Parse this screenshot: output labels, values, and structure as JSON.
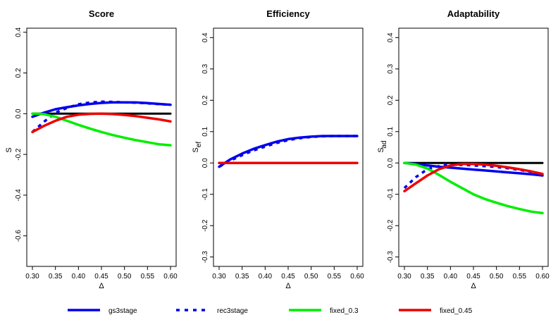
{
  "chart_data": [
    {
      "type": "line",
      "title": "Score",
      "xlabel": "Δ",
      "ylabel": "S",
      "ylabel_sub": "",
      "xlim": [
        0.3,
        0.6
      ],
      "ylim": [
        -0.75,
        0.42
      ],
      "xticks": [
        "0.30",
        "0.35",
        "0.40",
        "0.45",
        "0.50",
        "0.55",
        "0.60"
      ],
      "yticks": [
        -0.6,
        -0.4,
        -0.2,
        0.0,
        0.2,
        0.4
      ],
      "yticklabels": [
        "-0.6",
        "-0.4",
        "-0.2",
        "0.0",
        "0.2",
        "0.4"
      ],
      "x": [
        0.3,
        0.325,
        0.35,
        0.375,
        0.4,
        0.425,
        0.45,
        0.475,
        0.5,
        0.525,
        0.55,
        0.575,
        0.6
      ],
      "series": [
        {
          "key": "ref",
          "color": "#000000",
          "dash": false,
          "values": [
            0,
            0,
            0,
            0,
            0,
            0,
            0,
            0,
            0,
            0,
            0,
            0,
            0
          ]
        },
        {
          "key": "gs3stage",
          "color": "#0000ee",
          "dash": false,
          "values": [
            -0.015,
            0.005,
            0.022,
            0.032,
            0.041,
            0.048,
            0.053,
            0.056,
            0.056,
            0.055,
            0.052,
            0.048,
            0.044
          ]
        },
        {
          "key": "rec3stage",
          "color": "#0000ee",
          "dash": true,
          "values": [
            -0.09,
            -0.04,
            0.005,
            0.028,
            0.046,
            0.055,
            0.059,
            0.058,
            0.056,
            0.054,
            0.051,
            0.047,
            0.044
          ]
        },
        {
          "key": "fixed_0.3",
          "color": "#00ee00",
          "dash": false,
          "values": [
            0.0,
            -0.002,
            -0.015,
            -0.035,
            -0.055,
            -0.073,
            -0.09,
            -0.105,
            -0.118,
            -0.13,
            -0.14,
            -0.15,
            -0.155
          ]
        },
        {
          "key": "fixed_0.45",
          "color": "#ee0000",
          "dash": false,
          "values": [
            -0.09,
            -0.06,
            -0.035,
            -0.015,
            -0.005,
            -0.001,
            0.0,
            -0.002,
            -0.006,
            -0.012,
            -0.02,
            -0.028,
            -0.038
          ]
        }
      ]
    },
    {
      "type": "line",
      "title": "Efficiency",
      "xlabel": "Δ",
      "ylabel": "S",
      "ylabel_sub": "ef",
      "xlim": [
        0.3,
        0.6
      ],
      "ylim": [
        -0.33,
        0.43
      ],
      "xticks": [
        "0.30",
        "0.35",
        "0.40",
        "0.45",
        "0.50",
        "0.55",
        "0.60"
      ],
      "yticks": [
        -0.3,
        -0.2,
        -0.1,
        0.0,
        0.1,
        0.2,
        0.3,
        0.4
      ],
      "yticklabels": [
        "-0.3",
        "-0.2",
        "-0.1",
        "0.0",
        "0.1",
        "0.2",
        "0.3",
        "0.4"
      ],
      "x": [
        0.3,
        0.325,
        0.35,
        0.375,
        0.4,
        0.425,
        0.45,
        0.475,
        0.5,
        0.525,
        0.55,
        0.575,
        0.6
      ],
      "series": [
        {
          "key": "gs3stage",
          "color": "#0000ee",
          "dash": false,
          "values": [
            -0.012,
            0.012,
            0.03,
            0.045,
            0.057,
            0.068,
            0.076,
            0.081,
            0.084,
            0.086,
            0.086,
            0.086,
            0.086
          ]
        },
        {
          "key": "rec3stage",
          "color": "#0000ee",
          "dash": true,
          "values": [
            -0.012,
            0.008,
            0.025,
            0.04,
            0.052,
            0.064,
            0.073,
            0.079,
            0.083,
            0.085,
            0.086,
            0.086,
            0.086
          ]
        },
        {
          "key": "fixed_0.45",
          "color": "#ee0000",
          "dash": false,
          "values": [
            0,
            0,
            0,
            0,
            0,
            0,
            0,
            0,
            0,
            0,
            0,
            0,
            0
          ]
        }
      ]
    },
    {
      "type": "line",
      "title": "Adaptability",
      "xlabel": "Δ",
      "ylabel": "S",
      "ylabel_sub": "ad",
      "xlim": [
        0.3,
        0.6
      ],
      "ylim": [
        -0.33,
        0.43
      ],
      "xticks": [
        "0.30",
        "0.35",
        "0.40",
        "0.45",
        "0.50",
        "0.55",
        "0.60"
      ],
      "yticks": [
        -0.3,
        -0.2,
        -0.1,
        0.0,
        0.1,
        0.2,
        0.3,
        0.4
      ],
      "yticklabels": [
        "-0.3",
        "-0.2",
        "-0.1",
        "0.0",
        "0.1",
        "0.2",
        "0.3",
        "0.4"
      ],
      "x": [
        0.3,
        0.325,
        0.35,
        0.375,
        0.4,
        0.425,
        0.45,
        0.475,
        0.5,
        0.525,
        0.55,
        0.575,
        0.6
      ],
      "series": [
        {
          "key": "ref",
          "color": "#000000",
          "dash": false,
          "values": [
            0,
            0,
            0,
            0,
            0,
            0,
            0,
            0,
            0,
            0,
            0,
            0,
            0
          ]
        },
        {
          "key": "gs3stage",
          "color": "#0000ee",
          "dash": false,
          "values": [
            0.0,
            -0.003,
            -0.008,
            -0.012,
            -0.015,
            -0.018,
            -0.021,
            -0.024,
            -0.027,
            -0.03,
            -0.033,
            -0.036,
            -0.04
          ]
        },
        {
          "key": "rec3stage",
          "color": "#0000ee",
          "dash": true,
          "values": [
            -0.08,
            -0.045,
            -0.02,
            -0.01,
            -0.006,
            -0.006,
            -0.008,
            -0.01,
            -0.013,
            -0.017,
            -0.022,
            -0.028,
            -0.035
          ]
        },
        {
          "key": "fixed_0.3",
          "color": "#00ee00",
          "dash": false,
          "values": [
            0.0,
            -0.005,
            -0.018,
            -0.038,
            -0.06,
            -0.08,
            -0.1,
            -0.115,
            -0.127,
            -0.138,
            -0.147,
            -0.155,
            -0.16
          ]
        },
        {
          "key": "fixed_0.45",
          "color": "#ee0000",
          "dash": false,
          "values": [
            -0.09,
            -0.065,
            -0.04,
            -0.02,
            -0.008,
            -0.003,
            -0.003,
            -0.005,
            -0.009,
            -0.014,
            -0.02,
            -0.027,
            -0.035
          ]
        }
      ]
    }
  ],
  "legend": {
    "placement": "bottom",
    "items": [
      {
        "label": "gs3stage",
        "color": "#0000ee",
        "dash": false
      },
      {
        "label": "rec3stage",
        "color": "#0000ee",
        "dash": true
      },
      {
        "label": "fixed_0.3",
        "color": "#00ee00",
        "dash": false
      },
      {
        "label": "fixed_0.45",
        "color": "#ee0000",
        "dash": false
      }
    ]
  }
}
